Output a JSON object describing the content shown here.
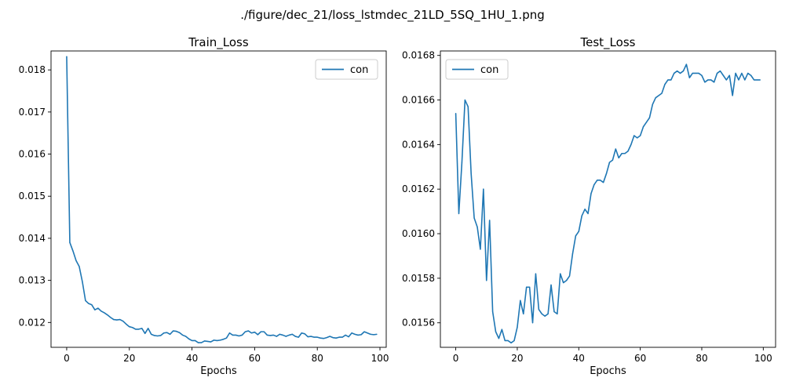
{
  "suptitle": "./figure/dec_21/loss_lstmdec_21LD_5SQ_1HU_1.png",
  "colors": {
    "series": "#1f77b4",
    "axes": "#000000",
    "legend_border": "#cccccc"
  },
  "chart_data": [
    {
      "type": "line",
      "title": "Train_Loss",
      "xlabel": "Epochs",
      "ylabel": "",
      "xlim": [
        -5,
        102
      ],
      "ylim": [
        0.01141,
        0.01845
      ],
      "xticks": [
        0,
        20,
        40,
        60,
        80,
        100
      ],
      "xtick_labels": [
        "0",
        "20",
        "40",
        "60",
        "80",
        "100"
      ],
      "yticks": [
        0.012,
        0.013,
        0.014,
        0.015,
        0.016,
        0.017,
        0.018
      ],
      "ytick_labels": [
        "0.012",
        "0.013",
        "0.014",
        "0.015",
        "0.016",
        "0.017",
        "0.018"
      ],
      "grid": false,
      "legend_position": "upper right",
      "series": [
        {
          "name": "con",
          "color": "#1f77b4",
          "x": [
            0,
            1,
            2,
            3,
            4,
            5,
            6,
            7,
            8,
            9,
            10,
            11,
            12,
            13,
            14,
            15,
            16,
            17,
            18,
            19,
            20,
            21,
            22,
            23,
            24,
            25,
            26,
            27,
            28,
            29,
            30,
            31,
            32,
            33,
            34,
            35,
            36,
            37,
            38,
            39,
            40,
            41,
            42,
            43,
            44,
            45,
            46,
            47,
            48,
            49,
            50,
            51,
            52,
            53,
            54,
            55,
            56,
            57,
            58,
            59,
            60,
            61,
            62,
            63,
            64,
            65,
            66,
            67,
            68,
            69,
            70,
            71,
            72,
            73,
            74,
            75,
            76,
            77,
            78,
            79,
            80,
            81,
            82,
            83,
            84,
            85,
            86,
            87,
            88,
            89,
            90,
            91,
            92,
            93,
            94,
            95,
            96,
            97,
            98,
            99
          ],
          "y": [
            0.01832,
            0.0139,
            0.0137,
            0.01347,
            0.01333,
            0.01297,
            0.01252,
            0.01245,
            0.01242,
            0.0123,
            0.01234,
            0.01227,
            0.01223,
            0.01218,
            0.01212,
            0.01207,
            0.01206,
            0.01207,
            0.01203,
            0.01196,
            0.0119,
            0.01188,
            0.01184,
            0.01184,
            0.01186,
            0.01174,
            0.01186,
            0.01172,
            0.01169,
            0.01168,
            0.01169,
            0.01175,
            0.01176,
            0.01172,
            0.0118,
            0.01179,
            0.01176,
            0.0117,
            0.01167,
            0.01161,
            0.01157,
            0.01157,
            0.01152,
            0.01152,
            0.01156,
            0.01155,
            0.01154,
            0.01158,
            0.01157,
            0.01158,
            0.0116,
            0.01163,
            0.01175,
            0.0117,
            0.0117,
            0.01168,
            0.0117,
            0.01178,
            0.0118,
            0.01175,
            0.01177,
            0.01171,
            0.01178,
            0.01178,
            0.0117,
            0.01169,
            0.0117,
            0.01167,
            0.01172,
            0.0117,
            0.01167,
            0.0117,
            0.01172,
            0.01167,
            0.01165,
            0.01175,
            0.01173,
            0.01166,
            0.01167,
            0.01165,
            0.01165,
            0.01163,
            0.01162,
            0.01164,
            0.01167,
            0.01164,
            0.01163,
            0.01165,
            0.01165,
            0.0117,
            0.01166,
            0.01175,
            0.01172,
            0.0117,
            0.01171,
            0.01178,
            0.01175,
            0.01172,
            0.01171,
            0.01172
          ]
        }
      ]
    },
    {
      "type": "line",
      "title": "Test_Loss",
      "xlabel": "Epochs",
      "ylabel": "",
      "xlim": [
        -5,
        104
      ],
      "ylim": [
        0.01549,
        0.01682
      ],
      "xticks": [
        0,
        20,
        40,
        60,
        80,
        100
      ],
      "xtick_labels": [
        "0",
        "20",
        "40",
        "60",
        "80",
        "100"
      ],
      "yticks": [
        0.0156,
        0.0158,
        0.016,
        0.0162,
        0.0164,
        0.0166,
        0.0168
      ],
      "ytick_labels": [
        "0.0156",
        "0.0158",
        "0.0160",
        "0.0162",
        "0.0164",
        "0.0166",
        "0.0168"
      ],
      "grid": false,
      "legend_position": "upper left",
      "series": [
        {
          "name": "con",
          "color": "#1f77b4",
          "x": [
            0,
            1,
            2,
            3,
            4,
            5,
            6,
            7,
            8,
            9,
            10,
            11,
            12,
            13,
            14,
            15,
            16,
            17,
            18,
            19,
            20,
            21,
            22,
            23,
            24,
            25,
            26,
            27,
            28,
            29,
            30,
            31,
            32,
            33,
            34,
            35,
            36,
            37,
            38,
            39,
            40,
            41,
            42,
            43,
            44,
            45,
            46,
            47,
            48,
            49,
            50,
            51,
            52,
            53,
            54,
            55,
            56,
            57,
            58,
            59,
            60,
            61,
            62,
            63,
            64,
            65,
            66,
            67,
            68,
            69,
            70,
            71,
            72,
            73,
            74,
            75,
            76,
            77,
            78,
            79,
            80,
            81,
            82,
            83,
            84,
            85,
            86,
            87,
            88,
            89,
            90,
            91,
            92,
            93,
            94,
            95,
            96,
            97,
            98,
            99
          ],
          "y": [
            0.01654,
            0.01609,
            0.01632,
            0.0166,
            0.01657,
            0.01627,
            0.01607,
            0.01603,
            0.01593,
            0.0162,
            0.01579,
            0.01606,
            0.01565,
            0.01556,
            0.01553,
            0.01557,
            0.01552,
            0.01552,
            0.01551,
            0.01552,
            0.01558,
            0.0157,
            0.01564,
            0.01576,
            0.01576,
            0.0156,
            0.01582,
            0.01566,
            0.01564,
            0.01563,
            0.01564,
            0.01577,
            0.01565,
            0.01564,
            0.01582,
            0.01578,
            0.01579,
            0.01581,
            0.01591,
            0.01599,
            0.01601,
            0.01608,
            0.01611,
            0.01609,
            0.01618,
            0.01622,
            0.01624,
            0.01624,
            0.01623,
            0.01627,
            0.01632,
            0.01633,
            0.01638,
            0.01634,
            0.01636,
            0.01636,
            0.01637,
            0.0164,
            0.01644,
            0.01643,
            0.01644,
            0.01648,
            0.0165,
            0.01652,
            0.01658,
            0.01661,
            0.01662,
            0.01663,
            0.01667,
            0.01669,
            0.01669,
            0.01672,
            0.01673,
            0.01672,
            0.01673,
            0.01676,
            0.0167,
            0.01672,
            0.01672,
            0.01672,
            0.01671,
            0.01668,
            0.01669,
            0.01669,
            0.01668,
            0.01672,
            0.01673,
            0.01671,
            0.01669,
            0.01671,
            0.01662,
            0.01672,
            0.01669,
            0.01672,
            0.01669,
            0.01672,
            0.01671,
            0.01669,
            0.01669,
            0.01669
          ]
        }
      ]
    }
  ]
}
